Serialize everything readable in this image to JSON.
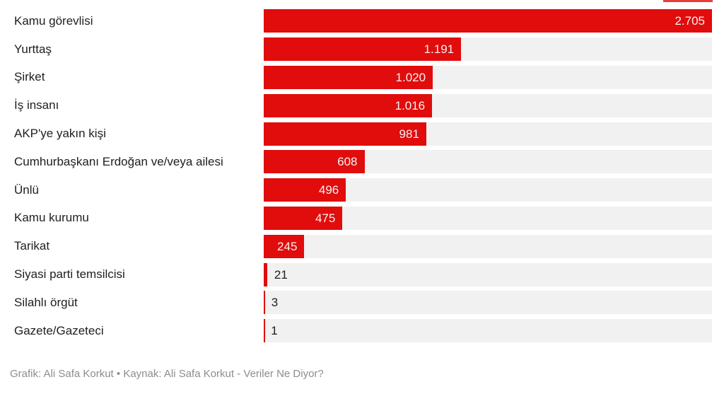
{
  "chart_data": {
    "type": "bar",
    "orientation": "horizontal",
    "title": "",
    "categories": [
      "Kamu görevlisi",
      "Yurttaş",
      "Şirket",
      "İş insanı",
      "AKP'ye yakın kişi",
      "Cumhurbaşkanı Erdoğan ve/veya ailesi",
      "Ünlü",
      "Kamu kurumu",
      "Tarikat",
      "Siyasi parti temsilcisi",
      "Silahlı örgüt",
      "Gazete/Gazeteci"
    ],
    "values": [
      2705,
      1191,
      1020,
      1016,
      981,
      608,
      496,
      475,
      245,
      21,
      3,
      1
    ],
    "value_labels": [
      "2.705",
      "1.191",
      "1.020",
      "1.016",
      "981",
      "608",
      "496",
      "475",
      "245",
      "21",
      "3",
      "1"
    ],
    "xlim": [
      0,
      2705
    ],
    "grid": false,
    "legend": false,
    "axis_ticks_visible": false,
    "bar_color": "#e10c0c",
    "track_color": "#f1f1f1"
  },
  "footer": {
    "credit": "Grafik: Ali Safa Korkut • Kaynak: Ali Safa Korkut - Veriler Ne Diyor?"
  },
  "colors": {
    "accent_red": "#e10c0c",
    "track_gray": "#f1f1f1",
    "label_text": "#202020",
    "value_text_inside": "#f4f4f4",
    "credit_text": "#8d8d8d",
    "background": "#ffffff"
  }
}
